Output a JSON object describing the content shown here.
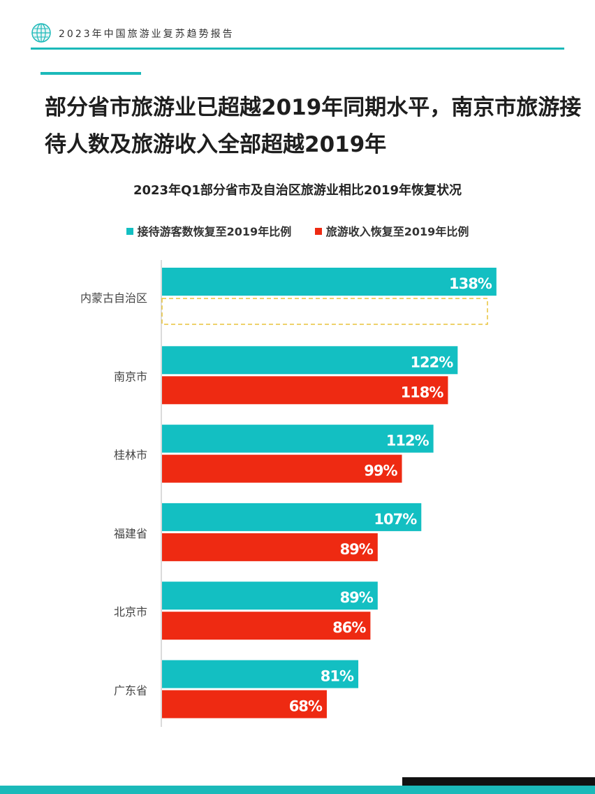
{
  "header": {
    "title": "2023年中国旅游业复苏趋势报告",
    "logo_icon": "globe-icon"
  },
  "headline": "部分省市旅游业已超越2019年同期水平，南京市旅游接待人数及旅游收入全部超越2019年",
  "colors": {
    "accent": "#1bb9b9",
    "visitors": "#13bfc2",
    "revenue": "#ee2a12",
    "highlight_border": "#e8c33a"
  },
  "chart_data": {
    "type": "bar",
    "orientation": "horizontal",
    "title": "2023年Q1部分省市及自治区旅游业相比2019年恢复状况",
    "categories": [
      "内蒙古自治区",
      "南京市",
      "桂林市",
      "福建省",
      "北京市",
      "广东省"
    ],
    "series": [
      {
        "name": "接待游客数恢复至2019年比例",
        "values": [
          138,
          122,
          112,
          107,
          89,
          81
        ]
      },
      {
        "name": "旅游收入恢复至2019年比例",
        "values": [
          null,
          118,
          99,
          89,
          86,
          68
        ]
      }
    ],
    "value_labels": [
      [
        "138%",
        "122%",
        "112%",
        "107%",
        "89%",
        "81%"
      ],
      [
        null,
        "118%",
        "99%",
        "89%",
        "86%",
        "68%"
      ]
    ],
    "units": "%",
    "xlim": [
      0,
      140
    ],
    "grid": false,
    "legend_position": "top",
    "highlighted_missing": "内蒙古自治区-旅游收入"
  }
}
